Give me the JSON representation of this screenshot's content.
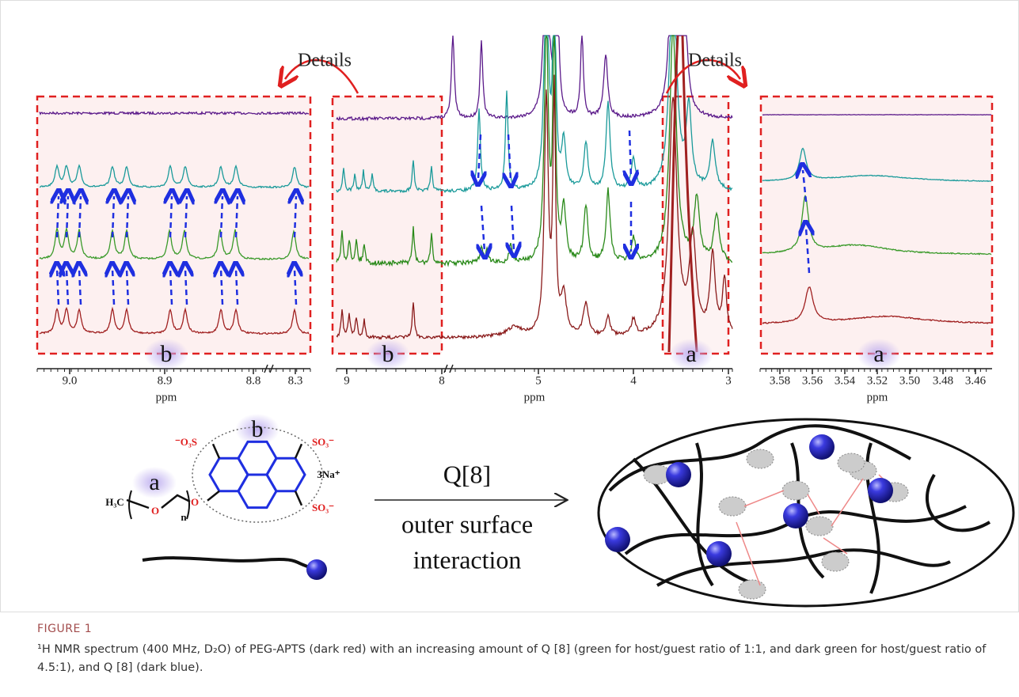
{
  "figure": {
    "panel_left": {
      "details": "Details",
      "label": "b",
      "ticks": [
        "9.0",
        "8.9",
        "8.8",
        "8.3"
      ],
      "axis_label": "ppm"
    },
    "panel_middle": {
      "label_b": "b",
      "label_a": "a",
      "ticks": [
        "9",
        "8",
        "5",
        "4",
        "3"
      ],
      "axis_label": "ppm"
    },
    "panel_right": {
      "details": "Details",
      "label": "a",
      "ticks": [
        "3.58",
        "3.56",
        "3.54",
        "3.52",
        "3.50",
        "3.48",
        "3.46"
      ],
      "axis_label": "ppm"
    },
    "structure": {
      "label_b": "b",
      "label_a": "a",
      "group_top_left": "⁻O₃S",
      "group_top_right": "SO₃⁻",
      "group_bottom_right": "SO₃⁻",
      "counter_ion": "3Na⁺",
      "end_group": "H₃C",
      "oxygen_chain": "O",
      "repeat": "n",
      "oxygen_link": "O"
    },
    "reaction": {
      "reagent": "Q[8]",
      "condition_line1": "outer surface",
      "condition_line2": "interaction"
    },
    "caption": {
      "label": "FIGURE 1",
      "text": "¹H NMR spectrum (400 MHz, D₂O) of PEG-APTS (dark red) with an increasing amount of Q [8] (green for host/guest ratio of 1:1, and dark green for host/guest ratio of 4.5:1), and Q [8] (dark blue)."
    }
  }
}
